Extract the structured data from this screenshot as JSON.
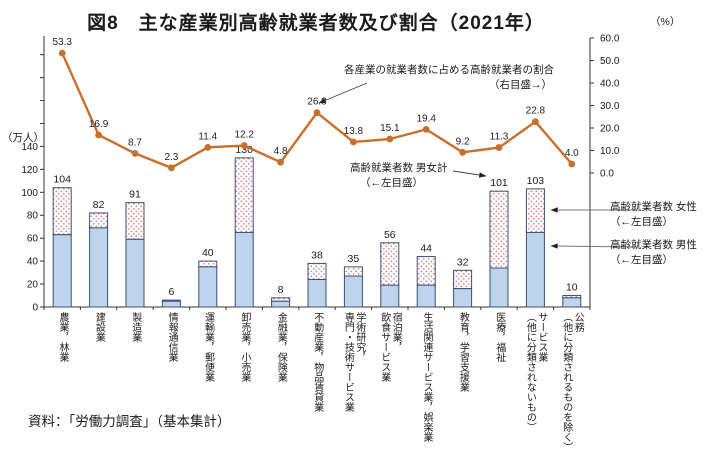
{
  "title": "図8　主な産業別高齢就業者数及び割合（2021年）",
  "source": "資料：「労働力調査」（基本集計）",
  "axes": {
    "left_unit": "（万人）",
    "right_unit": "（%）",
    "left_ticks": [
      0,
      20,
      40,
      60,
      80,
      100,
      120,
      140
    ],
    "right_ticks": [
      "60.0",
      "50.0",
      "40.0",
      "30.0",
      "20.0",
      "10.0",
      "0.0"
    ]
  },
  "annotations": {
    "ratio_line1": "各産業の就業者数に占める高齢就業者の割合",
    "ratio_line2": "（右目盛→）",
    "total_line1": "高齢就業者数 男女計",
    "total_line2": "（←左目盛）",
    "legend_female_line1": "高齢就業者数 女性",
    "legend_female_line2": "（←左目盛）",
    "legend_male_line1": "高齢就業者数 男性",
    "legend_male_line2": "（←左目盛）"
  },
  "colors": {
    "line": "#c96f2d",
    "bar_male_fill": "#bcd5ec",
    "bar_female_dot": "#dd7b7b",
    "bar_stroke": "#3a4f7a",
    "text": "#1a1a1a"
  },
  "chart_data": {
    "type": "bar",
    "title": "図8　主な産業別高齢就業者数及び割合（2021年）",
    "categories": [
      "農業，林業",
      "建設業",
      "製造業",
      "情報通信業",
      "運輸業，郵便業",
      "卸売業，小売業",
      "金融業，保険業",
      "不動産業，物品賃貸業",
      "学術研究，\n専門・技術サービス業",
      "宿泊業，\n飲食サービス業",
      "生活関連サービス業，娯楽業",
      "教育，学習支援業",
      "医療，福祉",
      "サービス業\n（他に分類されないもの）",
      "公務\n（他に分類されるものを除く）"
    ],
    "series": [
      {
        "name": "高齢就業者数 男性",
        "type": "bar",
        "stack": "total",
        "axis": "left",
        "values": [
          63,
          69,
          59,
          5,
          35,
          65,
          5,
          24,
          27,
          19,
          19,
          16,
          34,
          65,
          8
        ]
      },
      {
        "name": "高齢就業者数 女性",
        "type": "bar",
        "stack": "total",
        "axis": "left",
        "values": [
          41,
          13,
          32,
          1,
          5,
          65,
          3,
          14,
          8,
          37,
          25,
          16,
          67,
          38,
          2
        ]
      },
      {
        "name": "各産業の就業者数に占める高齢就業者の割合",
        "type": "line",
        "axis": "right",
        "values": [
          53.3,
          16.9,
          8.7,
          2.3,
          11.4,
          12.2,
          4.8,
          26.8,
          13.8,
          15.1,
          19.4,
          9.2,
          11.3,
          22.8,
          4.0
        ]
      }
    ],
    "bar_totals": [
      104,
      82,
      91,
      6,
      40,
      130,
      8,
      38,
      35,
      56,
      44,
      32,
      101,
      103,
      10
    ],
    "xlabel": "",
    "ylabel_left": "（万人）",
    "ylabel_right": "（%）",
    "left_ylim": [
      0,
      140
    ],
    "right_ylim": [
      0,
      60
    ],
    "grid": false,
    "legend_position": "right"
  }
}
